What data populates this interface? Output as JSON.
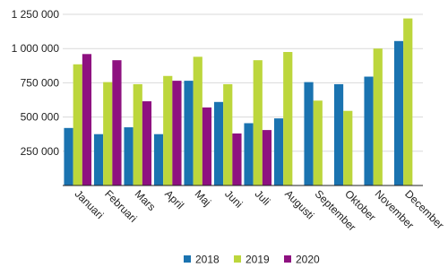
{
  "chart_data": {
    "type": "bar",
    "categories": [
      "Januari",
      "Februari",
      "Mars",
      "April",
      "Maj",
      "Juni",
      "Juli",
      "Augusti",
      "September",
      "Oktober",
      "November",
      "December"
    ],
    "series": [
      {
        "name": "2018",
        "color": "#1a73b0",
        "values": [
          420000,
          375000,
          425000,
          375000,
          765000,
          610000,
          455000,
          490000,
          755000,
          740000,
          795000,
          1055000
        ]
      },
      {
        "name": "2019",
        "color": "#bcd63c",
        "values": [
          885000,
          755000,
          740000,
          800000,
          940000,
          740000,
          915000,
          975000,
          620000,
          545000,
          1000000,
          1220000
        ]
      },
      {
        "name": "2020",
        "color": "#8e1180",
        "values": [
          960000,
          915000,
          615000,
          765000,
          570000,
          380000,
          405000,
          null,
          null,
          null,
          null,
          null
        ]
      }
    ],
    "ylim": [
      0,
      1250000
    ],
    "yticks": [
      {
        "value": 250000,
        "label": "250 000"
      },
      {
        "value": 500000,
        "label": "500 000"
      },
      {
        "value": 750000,
        "label": "750 000"
      },
      {
        "value": 1000000,
        "label": "1 000 000"
      },
      {
        "value": 1250000,
        "label": "1 250 000"
      }
    ],
    "grid": true
  }
}
